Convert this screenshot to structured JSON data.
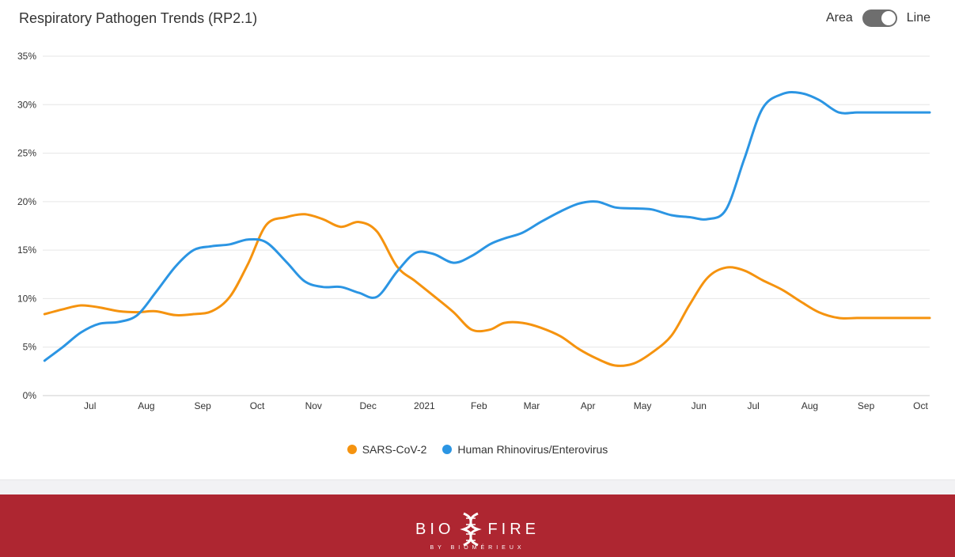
{
  "header": {
    "title": "Respiratory Pathogen Trends (RP2.1)",
    "toggle_left_label": "Area",
    "toggle_right_label": "Line",
    "toggle_state": "Line"
  },
  "footer": {
    "logo_left": "BIO",
    "logo_right": "FIRE",
    "logo_sub": "BY BIOMÉRIEUX",
    "background_color": "#ae2631"
  },
  "chart_data": {
    "type": "line",
    "title": "Respiratory Pathogen Trends (RP2.1)",
    "xlabel": "",
    "ylabel": "",
    "x_tick_labels": [
      "Jul",
      "Aug",
      "Sep",
      "Oct",
      "Nov",
      "Dec",
      "2021",
      "Feb",
      "Mar",
      "Apr",
      "May",
      "Jun",
      "Jul",
      "Aug",
      "Sep",
      "Oct"
    ],
    "x": [
      "2020-06-21",
      "2020-07-01",
      "2020-07-11",
      "2020-07-21",
      "2020-08-01",
      "2020-08-11",
      "2020-08-21",
      "2020-09-01",
      "2020-09-11",
      "2020-09-21",
      "2020-10-01",
      "2020-10-11",
      "2020-10-21",
      "2020-11-01",
      "2020-11-11",
      "2020-11-21",
      "2020-12-01",
      "2020-12-11",
      "2020-12-21",
      "2021-01-01",
      "2021-01-11",
      "2021-01-21",
      "2021-02-01",
      "2021-02-11",
      "2021-02-21",
      "2021-03-01",
      "2021-03-11",
      "2021-03-21",
      "2021-04-01",
      "2021-04-11",
      "2021-04-21",
      "2021-05-01",
      "2021-05-11",
      "2021-05-21",
      "2021-06-01",
      "2021-06-11",
      "2021-06-21",
      "2021-07-01",
      "2021-07-11",
      "2021-07-21",
      "2021-08-01",
      "2021-08-11",
      "2021-08-21",
      "2021-09-01",
      "2021-09-11",
      "2021-09-21",
      "2021-10-01",
      "2021-10-11",
      "2021-10-21"
    ],
    "series": [
      {
        "name": "SARS-CoV-2",
        "color": "#f5930f",
        "values": [
          8.4,
          8.9,
          9.3,
          9.1,
          8.7,
          8.6,
          8.7,
          8.3,
          8.4,
          8.7,
          10.2,
          13.6,
          17.6,
          18.4,
          18.7,
          18.2,
          17.4,
          17.9,
          16.9,
          13.3,
          11.8,
          10.3,
          8.6,
          6.8,
          6.8,
          7.5,
          7.5,
          7.0,
          6.1,
          4.8,
          3.8,
          3.1,
          3.3,
          4.4,
          6.2,
          9.4,
          12.2,
          13.2,
          12.9,
          11.9,
          10.9,
          9.7,
          8.6,
          8.0,
          8.0,
          8.0,
          8.0,
          8.0,
          8.0
        ]
      },
      {
        "name": "Human Rhinovirus/Enterovirus",
        "color": "#2b95e3",
        "values": [
          3.6,
          5.0,
          6.5,
          7.4,
          7.6,
          8.3,
          10.6,
          13.3,
          15.0,
          15.4,
          15.6,
          16.1,
          15.8,
          13.8,
          11.8,
          11.2,
          11.2,
          10.6,
          10.2,
          12.8,
          14.7,
          14.6,
          13.7,
          14.4,
          15.6,
          16.2,
          16.8,
          17.9,
          19.0,
          19.8,
          20.0,
          19.4,
          19.3,
          19.2,
          18.6,
          18.4,
          18.2,
          19.2,
          24.4,
          29.6,
          31.1,
          31.2,
          30.5,
          29.2,
          29.2,
          29.2,
          29.2,
          29.2,
          29.2
        ]
      }
    ],
    "ylim": [
      0,
      35
    ],
    "y_ticks": [
      "0%",
      "5%",
      "10%",
      "15%",
      "20%",
      "25%",
      "30%",
      "35%"
    ],
    "grid": true,
    "legend_position": "bottom-center"
  }
}
